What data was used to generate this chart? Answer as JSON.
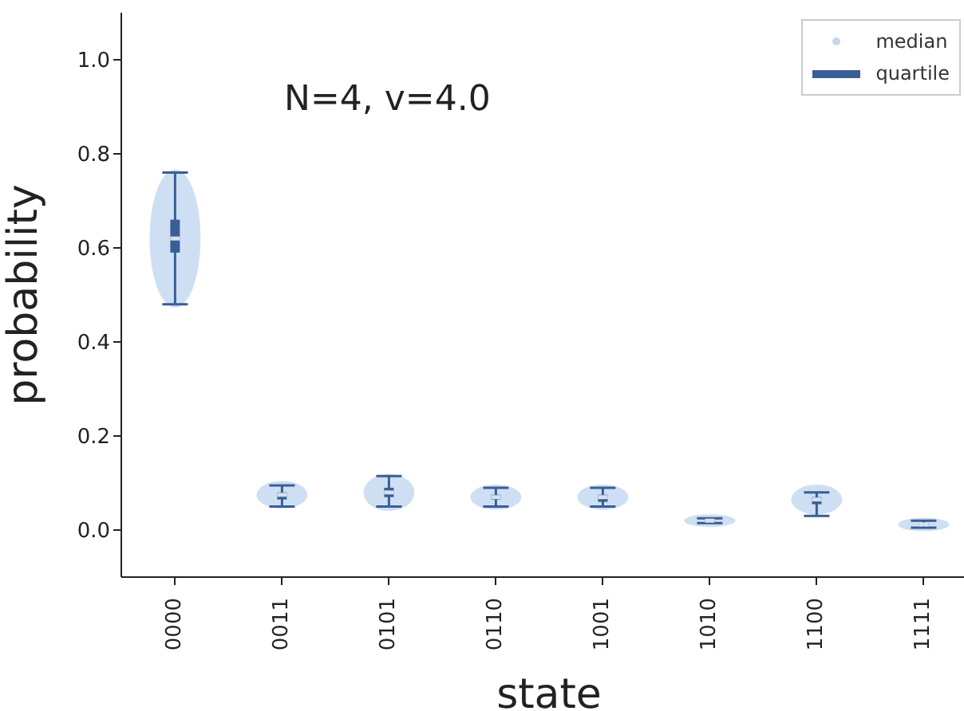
{
  "chart_data": {
    "type": "box",
    "xlabel": "state",
    "ylabel": "probability",
    "annotations": [
      "N=4, v=4.0",
      "median",
      "quartile"
    ],
    "categories": [
      "0000",
      "0011",
      "0101",
      "0110",
      "1001",
      "1010",
      "1100",
      "1111"
    ],
    "ylim": [
      -0.1,
      1.1
    ],
    "yticks": [
      {
        "value": 0,
        "label": "0.0"
      },
      {
        "value": 0.2,
        "label": "0.2"
      },
      {
        "value": 0.4,
        "label": "0.4"
      },
      {
        "value": 0.6,
        "label": "0.6"
      },
      {
        "value": 0.8,
        "label": "0.8"
      },
      {
        "value": 1,
        "label": "1.0"
      }
    ],
    "grid": false,
    "series": [
      {
        "color": "#3a5e96",
        "boxes": [
          {
            "low": 0.48,
            "q1": 0.59,
            "median": 0.62,
            "q3": 0.66,
            "high": 0.76
          },
          {
            "low": 0.05,
            "q1": 0.065,
            "median": 0.075,
            "q3": 0.08,
            "high": 0.095
          },
          {
            "low": 0.05,
            "q1": 0.07,
            "median": 0.08,
            "q3": 0.09,
            "high": 0.115
          },
          {
            "low": 0.05,
            "q1": 0.065,
            "median": 0.07,
            "q3": 0.075,
            "high": 0.09
          },
          {
            "low": 0.05,
            "q1": 0.06,
            "median": 0.07,
            "q3": 0.075,
            "high": 0.09
          },
          {
            "low": 0.015,
            "q1": 0.018,
            "median": 0.02,
            "q3": 0.022,
            "high": 0.025
          },
          {
            "low": 0.03,
            "q1": 0.055,
            "median": 0.065,
            "q3": 0.07,
            "high": 0.08
          },
          {
            "low": 0.005,
            "q1": 0.01,
            "median": 0.012,
            "q3": 0.015,
            "high": 0.02
          }
        ]
      }
    ]
  }
}
